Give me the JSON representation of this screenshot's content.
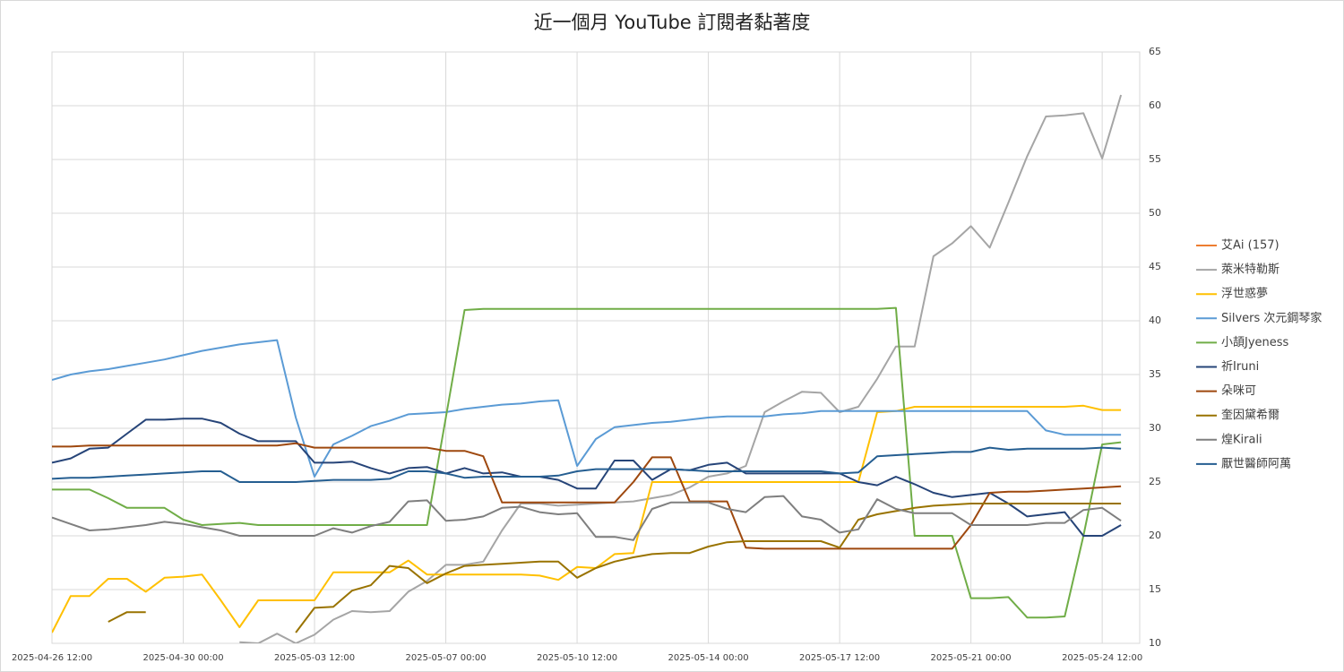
{
  "chart_data": {
    "type": "line",
    "title": "近一個月 YouTube 訂閱者黏著度",
    "x": [
      "2025-04-26 12:00",
      "2025-04-27 00:00",
      "2025-04-27 12:00",
      "2025-04-28 00:00",
      "2025-04-28 12:00",
      "2025-04-29 00:00",
      "2025-04-29 12:00",
      "2025-04-30 00:00",
      "2025-04-30 12:00",
      "2025-05-01 00:00",
      "2025-05-01 12:00",
      "2025-05-02 00:00",
      "2025-05-02 12:00",
      "2025-05-03 00:00",
      "2025-05-03 12:00",
      "2025-05-04 00:00",
      "2025-05-04 12:00",
      "2025-05-05 00:00",
      "2025-05-05 12:00",
      "2025-05-06 00:00",
      "2025-05-06 12:00",
      "2025-05-07 00:00",
      "2025-05-07 12:00",
      "2025-05-08 00:00",
      "2025-05-08 12:00",
      "2025-05-09 00:00",
      "2025-05-09 12:00",
      "2025-05-10 00:00",
      "2025-05-10 12:00",
      "2025-05-11 00:00",
      "2025-05-11 12:00",
      "2025-05-12 00:00",
      "2025-05-12 12:00",
      "2025-05-13 00:00",
      "2025-05-13 12:00",
      "2025-05-14 00:00",
      "2025-05-14 12:00",
      "2025-05-15 00:00",
      "2025-05-15 12:00",
      "2025-05-16 00:00",
      "2025-05-16 12:00",
      "2025-05-17 00:00",
      "2025-05-17 12:00",
      "2025-05-18 00:00",
      "2025-05-18 12:00",
      "2025-05-19 00:00",
      "2025-05-19 12:00",
      "2025-05-20 00:00",
      "2025-05-20 12:00",
      "2025-05-21 00:00",
      "2025-05-21 12:00",
      "2025-05-22 00:00",
      "2025-05-22 12:00",
      "2025-05-23 00:00",
      "2025-05-23 12:00",
      "2025-05-24 00:00",
      "2025-05-24 12:00",
      "2025-05-25 00:00"
    ],
    "xlim": [
      "2025-04-26 12:00",
      "2025-05-25 12:00"
    ],
    "xticks": [
      "2025-04-26 12:00",
      "2025-04-30 00:00",
      "2025-05-03 12:00",
      "2025-05-07 00:00",
      "2025-05-10 12:00",
      "2025-05-14 00:00",
      "2025-05-17 12:00",
      "2025-05-21 00:00",
      "2025-05-24 12:00"
    ],
    "ylim": [
      10,
      65
    ],
    "yticks": [
      10,
      15,
      20,
      25,
      30,
      35,
      40,
      45,
      50,
      55,
      60,
      65
    ],
    "grid": true,
    "legend": "right",
    "series": [
      {
        "name": "艾Ai (157)",
        "color": "#ed7d31",
        "values": [
          null,
          null,
          null,
          null,
          null,
          null,
          null,
          null,
          null,
          null,
          null,
          null,
          null,
          null,
          null,
          null,
          null,
          null,
          null,
          null,
          null,
          null,
          null,
          null,
          null,
          null,
          null,
          null,
          null,
          null,
          null,
          null,
          null,
          null,
          null,
          null,
          null,
          null,
          null,
          null,
          null,
          null,
          null,
          null,
          null,
          null,
          null,
          null,
          null,
          null,
          null,
          null,
          null,
          null,
          null,
          null,
          null,
          null
        ]
      },
      {
        "name": "萊米特勒斯",
        "color": "#a5a5a5",
        "values": [
          null,
          null,
          null,
          null,
          null,
          null,
          null,
          null,
          null,
          null,
          10.1,
          10,
          10.9,
          10,
          10.8,
          12.2,
          13,
          12.9,
          13,
          14.8,
          15.8,
          17.3,
          17.3,
          17.6,
          20.5,
          23,
          23,
          22.8,
          22.9,
          23,
          23.1,
          23.2,
          23.5,
          23.8,
          24.5,
          25.5,
          25.8,
          26.5,
          31.5,
          32.5,
          33.4,
          33.3,
          31.5,
          32,
          34.6,
          37.6,
          37.6,
          46,
          47.2,
          48.8,
          46.8,
          51,
          55.3,
          59,
          59.1,
          59.3,
          55.1,
          61
        ]
      },
      {
        "name": "浮世惑夢",
        "color": "#ffc000",
        "values": [
          11,
          14.4,
          14.4,
          16,
          16,
          14.8,
          16.1,
          16.2,
          16.4,
          14,
          11.5,
          14,
          14,
          14,
          14,
          16.6,
          16.6,
          16.6,
          16.6,
          17.7,
          16.4,
          16.4,
          16.4,
          16.4,
          16.4,
          16.4,
          16.3,
          15.9,
          17.1,
          17,
          18.3,
          18.4,
          25,
          25,
          25,
          25,
          25,
          25,
          25,
          25,
          25,
          25,
          25,
          25,
          31.5,
          31.6,
          32,
          32,
          32,
          32,
          32,
          32,
          32,
          32,
          32,
          32.1,
          31.7,
          31.7
        ]
      },
      {
        "name": "Silvers 次元鋼琴家",
        "color": "#5b9bd5",
        "values": [
          34.5,
          35,
          35.3,
          35.5,
          35.8,
          36.1,
          36.4,
          36.8,
          37.2,
          37.5,
          37.8,
          38,
          38.2,
          31,
          25.5,
          28.5,
          29.3,
          30.2,
          30.7,
          31.3,
          31.4,
          31.5,
          31.8,
          32,
          32.2,
          32.3,
          32.5,
          32.6,
          26.5,
          29,
          30.1,
          30.3,
          30.5,
          30.6,
          30.8,
          31,
          31.1,
          31.1,
          31.1,
          31.3,
          31.4,
          31.6,
          31.6,
          31.6,
          31.6,
          31.6,
          31.6,
          31.6,
          31.6,
          31.6,
          31.6,
          31.6,
          31.6,
          29.8,
          29.4,
          29.4,
          29.4,
          29.4
        ]
      },
      {
        "name": "小頡Jyeness",
        "color": "#70ad47",
        "values": [
          24.3,
          24.3,
          24.3,
          23.5,
          22.6,
          22.6,
          22.6,
          21.5,
          21,
          21.1,
          21.2,
          21,
          21,
          21,
          21,
          21,
          21,
          21,
          21,
          21,
          21,
          31,
          41,
          41.1,
          41.1,
          41.1,
          41.1,
          41.1,
          41.1,
          41.1,
          41.1,
          41.1,
          41.1,
          41.1,
          41.1,
          41.1,
          41.1,
          41.1,
          41.1,
          41.1,
          41.1,
          41.1,
          41.1,
          41.1,
          41.1,
          41.2,
          20,
          20,
          20,
          14.2,
          14.2,
          14.3,
          12.4,
          12.4,
          12.5,
          20,
          28.5,
          28.7
        ]
      },
      {
        "name": "祈Iruni",
        "color": "#264478",
        "values": [
          26.8,
          27.2,
          28.1,
          28.2,
          29.5,
          30.8,
          30.8,
          30.9,
          30.9,
          30.5,
          29.5,
          28.8,
          28.8,
          28.8,
          26.8,
          26.8,
          26.9,
          26.3,
          25.8,
          26.3,
          26.4,
          25.8,
          26.3,
          25.8,
          25.9,
          25.5,
          25.5,
          25.2,
          24.4,
          24.4,
          27,
          27,
          25.2,
          26.2,
          26.1,
          26.6,
          26.8,
          25.8,
          25.8,
          25.8,
          25.8,
          25.8,
          25.8,
          25,
          24.7,
          25.5,
          24.8,
          24,
          23.6,
          23.8,
          24,
          23,
          21.8,
          22,
          22.2,
          20,
          20,
          21
        ]
      },
      {
        "name": "朵咪可",
        "color": "#9e480e",
        "values": [
          28.3,
          28.3,
          28.4,
          28.4,
          28.4,
          28.4,
          28.4,
          28.4,
          28.4,
          28.4,
          28.4,
          28.4,
          28.4,
          28.6,
          28.2,
          28.2,
          28.2,
          28.2,
          28.2,
          28.2,
          28.2,
          27.9,
          27.9,
          27.4,
          23.1,
          23.1,
          23.1,
          23.1,
          23.1,
          23.1,
          23.1,
          25,
          27.3,
          27.3,
          23.2,
          23.2,
          23.2,
          18.9,
          18.8,
          18.8,
          18.8,
          18.8,
          18.8,
          18.8,
          18.8,
          18.8,
          18.8,
          18.8,
          18.8,
          21,
          24,
          24.1,
          24.1,
          24.2,
          24.3,
          24.4,
          24.5,
          24.6
        ]
      },
      {
        "name": "奎因黛希爾",
        "color": "#997300",
        "values": [
          null,
          null,
          null,
          12,
          12.9,
          12.9,
          null,
          null,
          null,
          null,
          null,
          null,
          null,
          11,
          13.3,
          13.4,
          14.9,
          15.4,
          17.2,
          17,
          15.6,
          16.5,
          17.2,
          17.3,
          17.4,
          17.5,
          17.6,
          17.6,
          16.1,
          17,
          17.6,
          18,
          18.3,
          18.4,
          18.4,
          19,
          19.4,
          19.5,
          19.5,
          19.5,
          19.5,
          19.5,
          18.9,
          21.5,
          22,
          22.3,
          22.6,
          22.8,
          22.9,
          23,
          23,
          23,
          23,
          23,
          23,
          23,
          23,
          23
        ]
      },
      {
        "name": "煌Kirali",
        "color": "#7f7f7f",
        "values": [
          21.7,
          21.1,
          20.5,
          20.6,
          20.8,
          21,
          21.3,
          21.1,
          20.8,
          20.5,
          20,
          20,
          20,
          20,
          20,
          20.7,
          20.3,
          20.9,
          21.3,
          23.2,
          23.3,
          21.4,
          21.5,
          21.8,
          22.6,
          22.7,
          22.2,
          22,
          22.1,
          19.9,
          19.9,
          19.6,
          22.5,
          23.1,
          23.1,
          23.1,
          22.5,
          22.2,
          23.6,
          23.7,
          21.8,
          21.5,
          20.3,
          20.6,
          23.4,
          22.5,
          22.1,
          22.1,
          22.1,
          21,
          21,
          21,
          21,
          21.2,
          21.2,
          22.4,
          22.6,
          21.4
        ]
      },
      {
        "name": "厭世醫師阿萬",
        "color": "#255e91",
        "values": [
          25.3,
          25.4,
          25.4,
          25.5,
          25.6,
          25.7,
          25.8,
          25.9,
          26,
          26,
          25,
          25,
          25,
          25,
          25.1,
          25.2,
          25.2,
          25.2,
          25.3,
          26,
          26,
          25.8,
          25.4,
          25.5,
          25.5,
          25.5,
          25.5,
          25.6,
          26,
          26.2,
          26.2,
          26.2,
          26.2,
          26.2,
          26.1,
          26,
          26,
          26,
          26,
          26,
          26,
          26,
          25.8,
          25.9,
          27.4,
          27.5,
          27.6,
          27.7,
          27.8,
          27.8,
          28.2,
          28,
          28.1,
          28.1,
          28.1,
          28.1,
          28.2,
          28.1
        ]
      }
    ]
  }
}
